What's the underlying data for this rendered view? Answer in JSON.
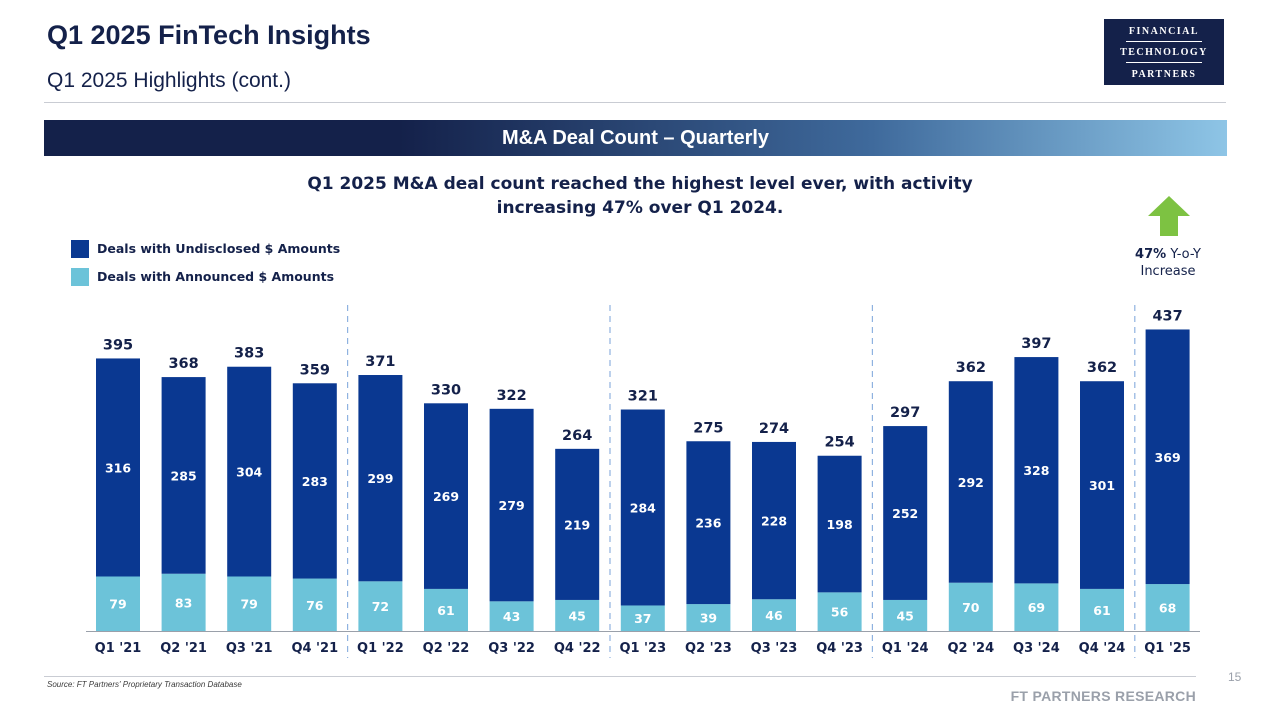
{
  "header": {
    "title": "Q1 2025 FinTech Insights",
    "subtitle": "Q1 2025 Highlights (cont.)",
    "logo": {
      "line1": "FINANCIAL",
      "line2": "TECHNOLOGY",
      "line3": "PARTNERS"
    }
  },
  "banner": {
    "label": "M&A Deal Count – Quarterly"
  },
  "headline": {
    "line1": "Q1 2025 M&A deal count reached the highest level ever, with activity",
    "line2": "increasing 47% over Q1 2024."
  },
  "callout": {
    "percent": "47%",
    "suffix": "Y-o-Y",
    "line2": "Increase",
    "arrow_icon": "up-arrow-icon",
    "arrow_color": "#7dc242"
  },
  "colors": {
    "undisclosed": "#0a3891",
    "announced": "#6cc3d9",
    "divider": "#8fb2e0",
    "axis": "#9aa0aa"
  },
  "chart_data": {
    "type": "bar",
    "stacked": true,
    "categories": [
      "Q1 '21",
      "Q2 '21",
      "Q3 '21",
      "Q4 '21",
      "Q1 '22",
      "Q2 '22",
      "Q3 '22",
      "Q4 '22",
      "Q1 '23",
      "Q2 '23",
      "Q3 '23",
      "Q4 '23",
      "Q1 '24",
      "Q2 '24",
      "Q3 '24",
      "Q4 '24",
      "Q1 '25"
    ],
    "series": [
      {
        "name": "Deals with Announced $ Amounts",
        "values": [
          79,
          83,
          79,
          76,
          72,
          61,
          43,
          45,
          37,
          39,
          46,
          56,
          45,
          70,
          69,
          61,
          68
        ]
      },
      {
        "name": "Deals with Undisclosed $ Amounts",
        "values": [
          316,
          285,
          304,
          283,
          299,
          269,
          279,
          219,
          284,
          236,
          228,
          198,
          252,
          292,
          328,
          301,
          369
        ]
      }
    ],
    "totals": [
      395,
      368,
      383,
      359,
      371,
      330,
      322,
      264,
      321,
      275,
      274,
      254,
      297,
      362,
      397,
      362,
      437
    ],
    "legend": "top-left",
    "grid": false,
    "year_dividers_after": [
      "Q4 '21",
      "Q4 '22",
      "Q4 '23",
      "Q4 '24"
    ]
  },
  "footer": {
    "source": "Source: FT Partners' Proprietary Transaction Database",
    "page_number": "15",
    "brand": "FT PARTNERS RESEARCH"
  }
}
